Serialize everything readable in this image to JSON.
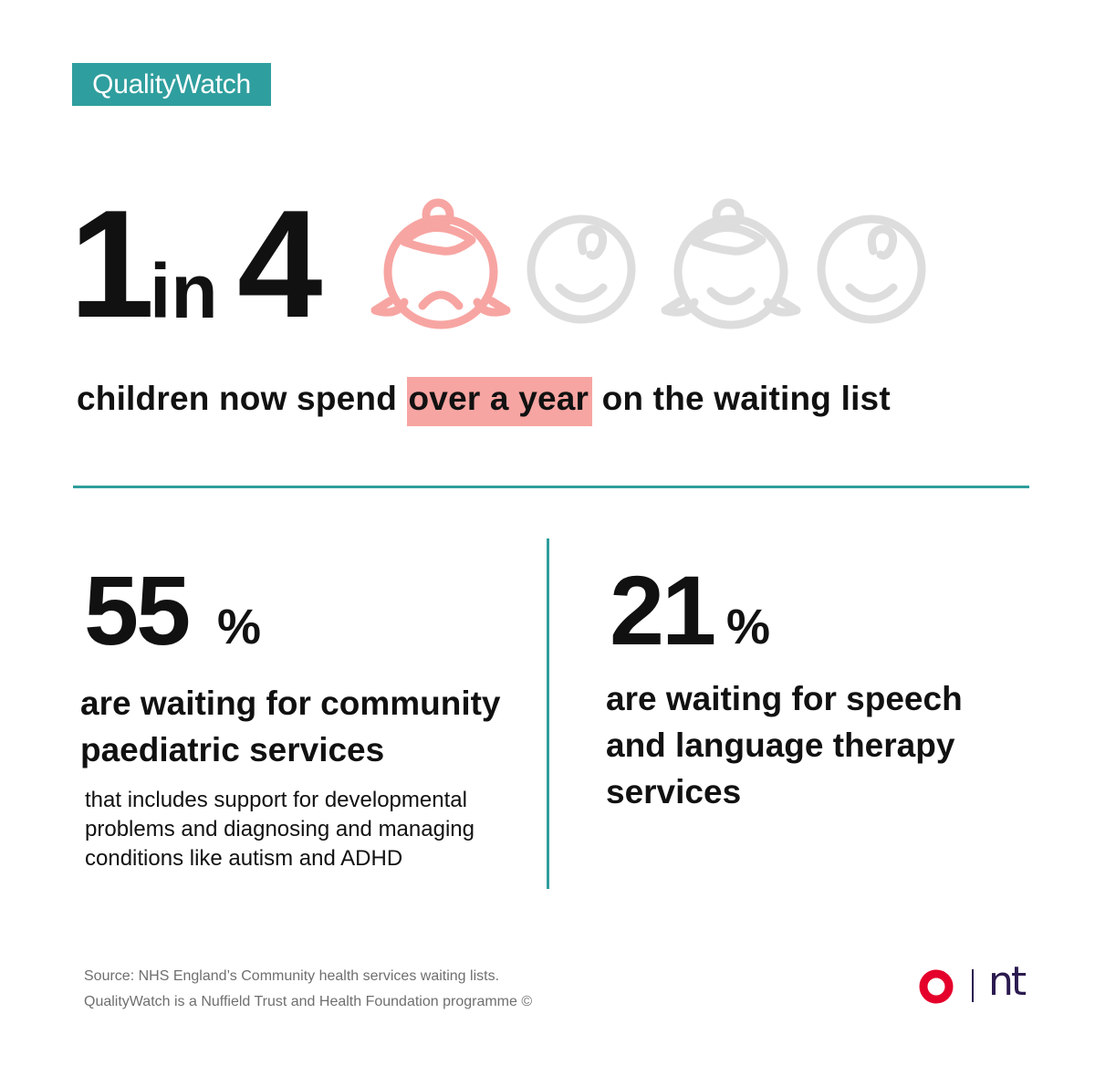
{
  "brand": {
    "badge_label": "QualityWatch",
    "teal": "#2f9e9e",
    "pink": "#f7a5a2",
    "icon_grey": "#dddddd",
    "logo_red": "#e4002b",
    "logo_purple": "#2b1a4f"
  },
  "hero": {
    "numerator": "1",
    "connector": "in",
    "denominator": "4",
    "headline_before": "children now spend ",
    "headline_highlight": "over a year",
    "headline_after": " on the waiting list",
    "icons": [
      {
        "name": "child-girl-icon",
        "state": "highlighted"
      },
      {
        "name": "child-boy-icon",
        "state": "muted"
      },
      {
        "name": "child-girl-icon",
        "state": "muted"
      },
      {
        "name": "child-boy-icon",
        "state": "muted"
      }
    ]
  },
  "stats": [
    {
      "value": "55",
      "unit": "%",
      "text_line1": "are waiting for community",
      "text_line2": "paediatric services",
      "note_line1": "that includes support for developmental",
      "note_line2": "problems and diagnosing and managing",
      "note_line3": "conditions like autism and ADHD"
    },
    {
      "value": "21",
      "unit": "%",
      "text_line1": "are waiting for speech",
      "text_line2": "and language therapy",
      "text_line3": "services"
    }
  ],
  "footer": {
    "source_line1": "Source: NHS England’s Community health services waiting lists.",
    "source_line2": "QualityWatch is a Nuffield Trust and Health Foundation programme ©",
    "logo_text": "nt"
  }
}
